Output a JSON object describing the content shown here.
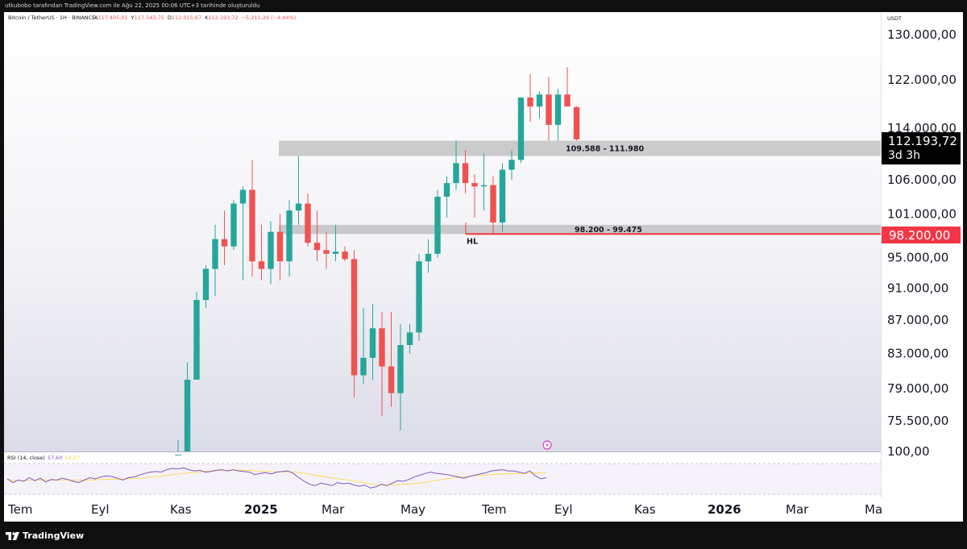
{
  "header": {
    "text": "utkubobo tarafından TradingView.com ile Ağu 22, 2025 00:06 UTC+3 tarihinde oluşturuldu"
  },
  "legend": {
    "symbol": "Bitcoin / TetherUS · 1H · BINANCE",
    "o_label": "A",
    "o_value": "117.405,01",
    "h_label": "Y",
    "h_value": "117.543,75",
    "l_label": "D",
    "l_value": "112.015,67",
    "c_label": "K",
    "c_value": "112.193,72",
    "change": "−5.211,29 (−4,44%)"
  },
  "colors": {
    "up": "#26a69a",
    "down": "#ef5350",
    "zone": "#9e9e9e",
    "rsi": "#7e57c2",
    "rsi_ma": "#fdd835",
    "support": "#f23645"
  },
  "chart_data": {
    "type": "candlestick",
    "currency_label": "USDT",
    "y_axis_ticks": [
      "130.000,00",
      "122.000,00",
      "114.000,00",
      "106.000,00",
      "101.000,00",
      "95.000,00",
      "91.000,00",
      "87.000,00",
      "83.000,00",
      "79.000,00",
      "75.500,00",
      "100,00"
    ],
    "y_scale": "log",
    "x_axis_labels": [
      "Tem",
      "Eyl",
      "Kas",
      "2025",
      "Mar",
      "May",
      "Tem",
      "Eyl",
      "Kas",
      "2026",
      "Mar",
      "Ma"
    ],
    "x_axis_bold": [
      "2025",
      "2026"
    ],
    "last_price": {
      "label": "112.193,72",
      "countdown": "3d 3h"
    },
    "support_price": {
      "label": "98.200,00",
      "value": 98200
    },
    "zones": [
      {
        "label": "109.588 - 111.980",
        "low": 109588,
        "high": 111980
      },
      {
        "label": "98.200 - 99.475",
        "low": 98200,
        "high": 99475
      }
    ],
    "annotations": [
      {
        "text": "HL"
      }
    ],
    "candles": [
      {
        "o": 67000,
        "h": 73500,
        "l": 66000,
        "c": 72000
      },
      {
        "o": 72000,
        "h": 82000,
        "l": 71500,
        "c": 80000
      },
      {
        "o": 80000,
        "h": 90500,
        "l": 80000,
        "c": 89500
      },
      {
        "o": 89500,
        "h": 94000,
        "l": 88500,
        "c": 93500
      },
      {
        "o": 93500,
        "h": 99500,
        "l": 90000,
        "c": 97500
      },
      {
        "o": 97500,
        "h": 101500,
        "l": 94000,
        "c": 96500
      },
      {
        "o": 96500,
        "h": 103000,
        "l": 96000,
        "c": 102500
      },
      {
        "o": 102500,
        "h": 105000,
        "l": 92000,
        "c": 104500
      },
      {
        "o": 104500,
        "h": 109000,
        "l": 92500,
        "c": 94500
      },
      {
        "o": 94500,
        "h": 99500,
        "l": 92000,
        "c": 93500
      },
      {
        "o": 93500,
        "h": 100000,
        "l": 91500,
        "c": 98500
      },
      {
        "o": 98500,
        "h": 101000,
        "l": 92000,
        "c": 94500
      },
      {
        "o": 94500,
        "h": 103000,
        "l": 92500,
        "c": 101500
      },
      {
        "o": 101500,
        "h": 109588,
        "l": 99500,
        "c": 102500
      },
      {
        "o": 102500,
        "h": 104000,
        "l": 96500,
        "c": 97000
      },
      {
        "o": 97000,
        "h": 101500,
        "l": 94500,
        "c": 96000
      },
      {
        "o": 96000,
        "h": 98500,
        "l": 93500,
        "c": 95500
      },
      {
        "o": 95500,
        "h": 99500,
        "l": 94500,
        "c": 95800
      },
      {
        "o": 95800,
        "h": 96500,
        "l": 94500,
        "c": 94800
      },
      {
        "o": 94800,
        "h": 96000,
        "l": 78000,
        "c": 80500
      },
      {
        "o": 80500,
        "h": 88500,
        "l": 79500,
        "c": 82500
      },
      {
        "o": 82500,
        "h": 89000,
        "l": 80000,
        "c": 86000
      },
      {
        "o": 86000,
        "h": 88000,
        "l": 76000,
        "c": 81500
      },
      {
        "o": 81500,
        "h": 88000,
        "l": 77000,
        "c": 78500
      },
      {
        "o": 78500,
        "h": 86500,
        "l": 74500,
        "c": 84000
      },
      {
        "o": 84000,
        "h": 86500,
        "l": 83000,
        "c": 85500
      },
      {
        "o": 85500,
        "h": 95500,
        "l": 84500,
        "c": 94500
      },
      {
        "o": 94500,
        "h": 97500,
        "l": 93000,
        "c": 95500
      },
      {
        "o": 95500,
        "h": 104500,
        "l": 95000,
        "c": 103500
      },
      {
        "o": 103500,
        "h": 106500,
        "l": 100500,
        "c": 105500
      },
      {
        "o": 105500,
        "h": 112000,
        "l": 104500,
        "c": 108500
      },
      {
        "o": 108500,
        "h": 110500,
        "l": 104000,
        "c": 105500
      },
      {
        "o": 105500,
        "h": 106800,
        "l": 100500,
        "c": 105000
      },
      {
        "o": 105000,
        "h": 110000,
        "l": 101500,
        "c": 105200
      },
      {
        "o": 105200,
        "h": 106500,
        "l": 98200,
        "c": 99800
      },
      {
        "o": 99800,
        "h": 108500,
        "l": 98500,
        "c": 107500
      },
      {
        "o": 107500,
        "h": 110500,
        "l": 106000,
        "c": 109000
      },
      {
        "o": 109000,
        "h": 119000,
        "l": 108500,
        "c": 119000
      },
      {
        "o": 119000,
        "h": 123000,
        "l": 115000,
        "c": 117500
      },
      {
        "o": 117500,
        "h": 120000,
        "l": 115500,
        "c": 119500
      },
      {
        "o": 119500,
        "h": 122500,
        "l": 112000,
        "c": 114500
      },
      {
        "o": 114500,
        "h": 120500,
        "l": 112000,
        "c": 119500
      },
      {
        "o": 119500,
        "h": 124200,
        "l": 117500,
        "c": 117500
      },
      {
        "o": 117405,
        "h": 117544,
        "l": 112016,
        "c": 112194
      }
    ],
    "rsi": {
      "label": "RSI (14, close)",
      "value": "57,60",
      "ma_value": "54,27",
      "values": [
        55,
        49,
        53,
        51,
        57,
        52,
        56,
        50,
        54,
        53,
        56,
        54,
        51,
        49,
        53,
        57,
        55,
        58,
        60,
        59,
        56,
        53,
        57,
        58,
        61,
        64,
        66,
        67,
        66,
        70,
        72,
        71,
        73,
        70,
        68,
        69,
        66,
        67,
        69,
        70,
        68,
        70,
        68,
        67,
        66,
        62,
        64,
        65,
        63,
        66,
        67,
        68,
        64,
        57,
        51,
        46,
        44,
        48,
        46,
        44,
        49,
        47,
        48,
        45,
        43,
        45,
        40,
        42,
        46,
        44,
        48,
        52,
        51,
        54,
        58,
        61,
        64,
        66,
        64,
        63,
        62,
        60,
        58,
        56,
        59,
        61,
        63,
        65,
        68,
        69,
        70,
        68,
        68,
        66,
        64,
        68,
        60,
        55,
        57
      ]
    }
  }
}
